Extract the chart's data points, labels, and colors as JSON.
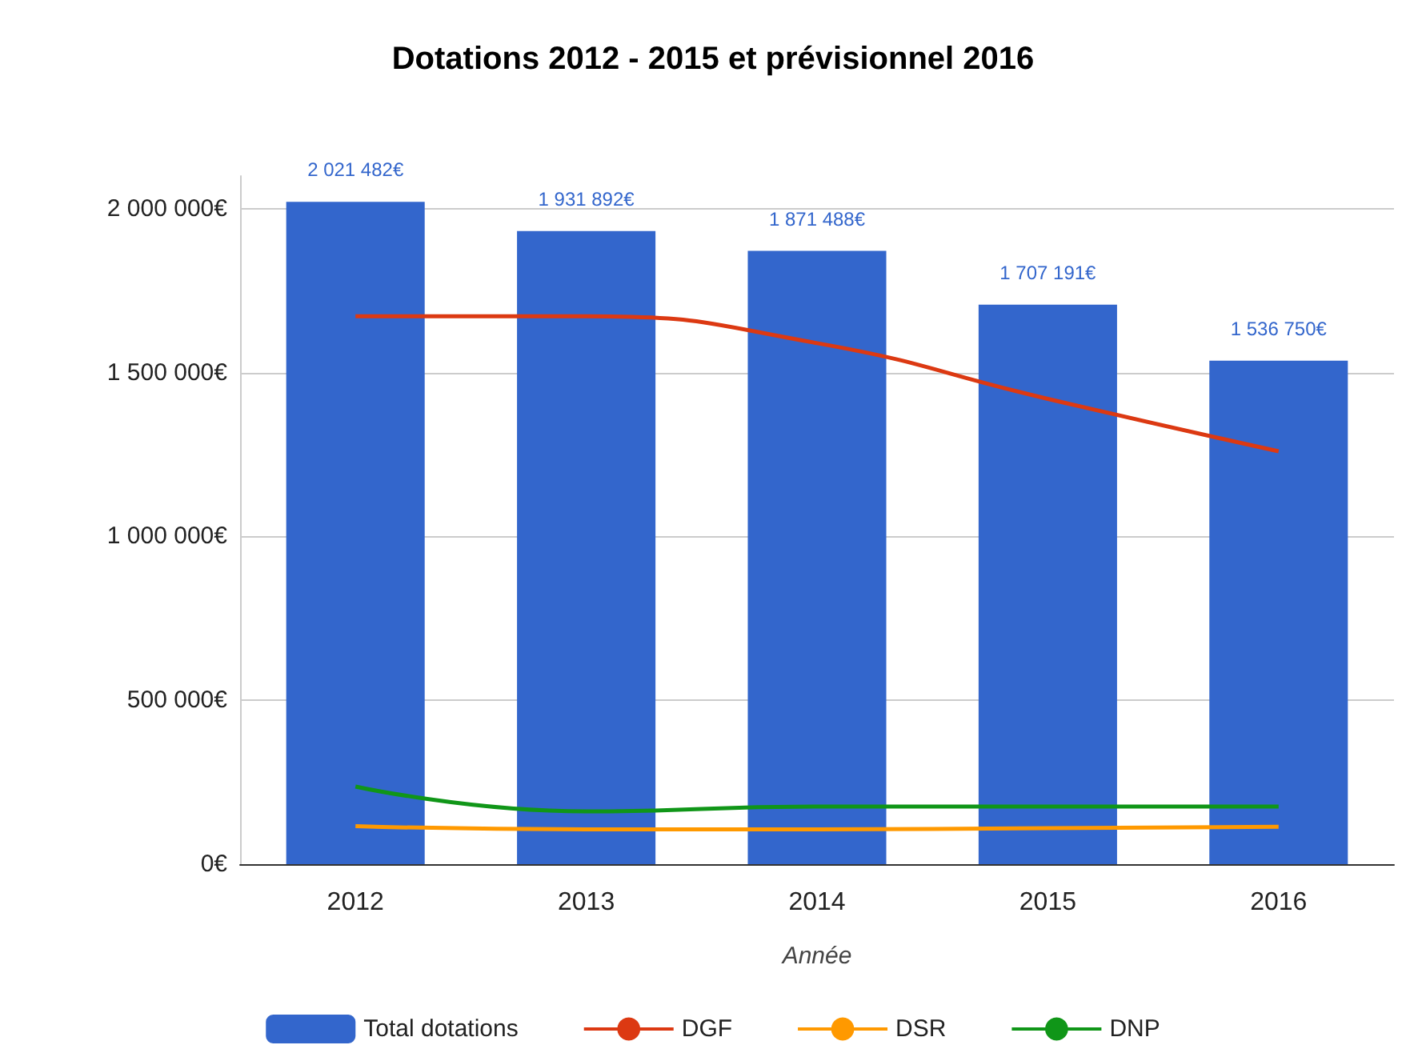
{
  "chart_data": {
    "type": "bar",
    "title": "Dotations 2012 - 2015 et prévisionnel 2016",
    "xlabel": "Année",
    "categories": [
      "2012",
      "2013",
      "2014",
      "2015",
      "2016"
    ],
    "series": [
      {
        "name": "Total dotations",
        "color": "#3366cc",
        "values": [
          2021482,
          1931892,
          1871488,
          1707191,
          1536750
        ],
        "value_labels": [
          "2 021 482€",
          "1 931 892€",
          "1 871 488€",
          "1 707 191€",
          "1 536 750€"
        ]
      },
      {
        "name": "DGF",
        "type": "line",
        "color": "#dc3912",
        "values": [
          1672000,
          1672000,
          1590000,
          1420000,
          1260000
        ]
      },
      {
        "name": "DSR",
        "type": "line",
        "color": "#ff9900",
        "values": [
          116000,
          106000,
          106000,
          110000,
          114000
        ]
      },
      {
        "name": "DNP",
        "type": "line",
        "color": "#109618",
        "values": [
          237000,
          161000,
          176000,
          176000,
          176000
        ]
      }
    ],
    "ylim": [
      0,
      2100000
    ],
    "yticks": [
      {
        "value": 0,
        "label": "0€"
      },
      {
        "value": 500000,
        "label": "500 000€"
      },
      {
        "value": 1000000,
        "label": "1 000 000€"
      },
      {
        "value": 1500000,
        "label": "1 500 000€"
      },
      {
        "value": 2000000,
        "label": "2 000 000€"
      }
    ],
    "grid": "y",
    "legend": "bottom",
    "marker": "none",
    "line_style": "solid"
  }
}
